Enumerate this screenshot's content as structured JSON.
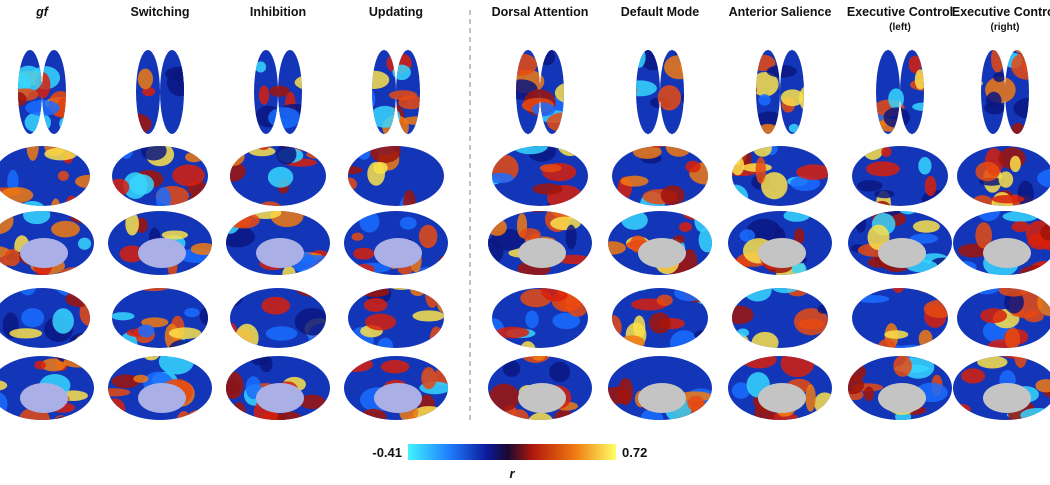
{
  "figure": {
    "columns": [
      {
        "title": "gf"
      },
      {
        "title": "Switching"
      },
      {
        "title": "Inhibition"
      },
      {
        "title": "Updating"
      },
      {
        "title": "Dorsal Attention"
      },
      {
        "title": "Default Mode"
      },
      {
        "title": "Anterior Salience"
      },
      {
        "title": "Executive Control",
        "subtitle": "(left)"
      },
      {
        "title": "Executive Control",
        "subtitle": "(right)"
      }
    ],
    "colorbar": {
      "min": -0.41,
      "max": 0.72,
      "label": "r"
    }
  }
}
